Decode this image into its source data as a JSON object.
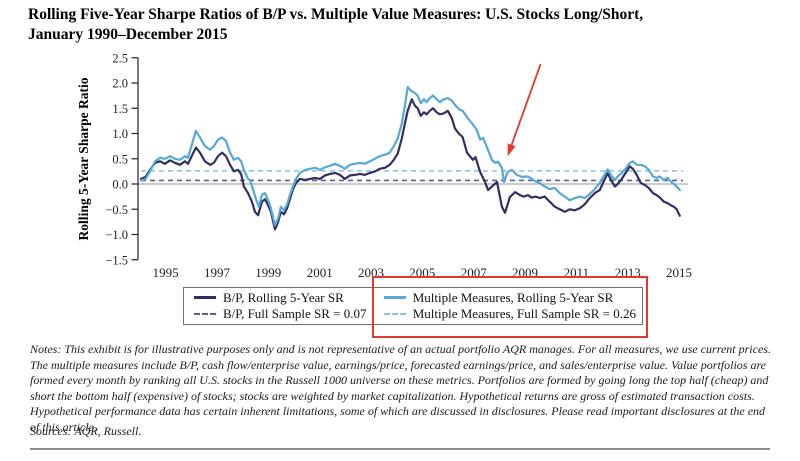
{
  "title": {
    "line1": "Rolling Five-Year Sharpe Ratios of B/P vs. Multiple Value Measures: U.S. Stocks Long/Short,",
    "line2": "January 1990–December 2015"
  },
  "chart_data": {
    "type": "line",
    "title": "Rolling Five-Year Sharpe Ratios of B/P vs. Multiple Value Measures: U.S. Stocks Long/Short, January 1990–December 2015",
    "xlabel": "",
    "ylabel": "Rolling 5-Year Sharpe Ratio",
    "ylim": [
      -1.5,
      2.5
    ],
    "ytick_step": 0.5,
    "xticks": [
      1995,
      1997,
      1999,
      2001,
      2003,
      2005,
      2007,
      2009,
      2011,
      2013,
      2015
    ],
    "x_range": [
      1994.92,
      2015.92
    ],
    "grid": "zero-line-only",
    "legend_position": "bottom",
    "series": [
      {
        "name": "B/P, Rolling 5-Year SR",
        "style": "solid",
        "color": "#342e60",
        "points": [
          [
            1994.92,
            0.1
          ],
          [
            1995.1,
            0.14
          ],
          [
            1995.27,
            0.28
          ],
          [
            1995.47,
            0.42
          ],
          [
            1995.66,
            0.45
          ],
          [
            1995.85,
            0.4
          ],
          [
            1996.05,
            0.47
          ],
          [
            1996.24,
            0.42
          ],
          [
            1996.44,
            0.38
          ],
          [
            1996.63,
            0.45
          ],
          [
            1996.75,
            0.4
          ],
          [
            1996.94,
            0.6
          ],
          [
            1997.06,
            0.72
          ],
          [
            1997.22,
            0.62
          ],
          [
            1997.41,
            0.45
          ],
          [
            1997.61,
            0.38
          ],
          [
            1997.76,
            0.42
          ],
          [
            1997.92,
            0.55
          ],
          [
            1998.08,
            0.62
          ],
          [
            1998.23,
            0.55
          ],
          [
            1998.39,
            0.38
          ],
          [
            1998.54,
            0.25
          ],
          [
            1998.7,
            0.28
          ],
          [
            1998.82,
            0.2
          ],
          [
            1998.93,
            -0.05
          ],
          [
            1999.09,
            -0.18
          ],
          [
            1999.24,
            -0.35
          ],
          [
            1999.36,
            -0.55
          ],
          [
            1999.48,
            -0.62
          ],
          [
            1999.63,
            -0.35
          ],
          [
            1999.75,
            -0.3
          ],
          [
            1999.87,
            -0.42
          ],
          [
            1999.98,
            -0.55
          ],
          [
            2000.14,
            -0.9
          ],
          [
            2000.26,
            -0.75
          ],
          [
            2000.37,
            -0.55
          ],
          [
            2000.49,
            -0.6
          ],
          [
            2000.61,
            -0.48
          ],
          [
            2000.72,
            -0.3
          ],
          [
            2000.84,
            -0.1
          ],
          [
            2000.96,
            0.02
          ],
          [
            2001.11,
            0.1
          ],
          [
            2001.31,
            0.08
          ],
          [
            2001.5,
            0.1
          ],
          [
            2001.7,
            0.12
          ],
          [
            2001.89,
            0.1
          ],
          [
            2002.09,
            0.17
          ],
          [
            2002.28,
            0.2
          ],
          [
            2002.48,
            0.22
          ],
          [
            2002.67,
            0.18
          ],
          [
            2002.86,
            0.1
          ],
          [
            2003.06,
            0.17
          ],
          [
            2003.25,
            0.18
          ],
          [
            2003.45,
            0.2
          ],
          [
            2003.64,
            0.18
          ],
          [
            2003.84,
            0.22
          ],
          [
            2004.03,
            0.25
          ],
          [
            2004.22,
            0.3
          ],
          [
            2004.42,
            0.32
          ],
          [
            2004.61,
            0.38
          ],
          [
            2004.77,
            0.48
          ],
          [
            2004.92,
            0.6
          ],
          [
            2005.08,
            0.9
          ],
          [
            2005.2,
            1.2
          ],
          [
            2005.31,
            1.45
          ],
          [
            2005.47,
            1.68
          ],
          [
            2005.59,
            1.55
          ],
          [
            2005.7,
            1.5
          ],
          [
            2005.82,
            1.35
          ],
          [
            2005.94,
            1.42
          ],
          [
            2006.05,
            1.38
          ],
          [
            2006.17,
            1.45
          ],
          [
            2006.29,
            1.5
          ],
          [
            2006.44,
            1.42
          ],
          [
            2006.56,
            1.38
          ],
          [
            2006.72,
            1.4
          ],
          [
            2006.87,
            1.45
          ],
          [
            2007.03,
            1.3
          ],
          [
            2007.15,
            1.1
          ],
          [
            2007.3,
            1.0
          ],
          [
            2007.45,
            0.93
          ],
          [
            2007.62,
            0.62
          ],
          [
            2007.85,
            0.48
          ],
          [
            2007.95,
            0.53
          ],
          [
            2008.13,
            0.24
          ],
          [
            2008.32,
            0.04
          ],
          [
            2008.44,
            -0.12
          ],
          [
            2008.59,
            -0.05
          ],
          [
            2008.79,
            0.04
          ],
          [
            2008.98,
            -0.45
          ],
          [
            2009.1,
            -0.57
          ],
          [
            2009.29,
            -0.26
          ],
          [
            2009.49,
            -0.16
          ],
          [
            2009.68,
            -0.22
          ],
          [
            2009.83,
            -0.25
          ],
          [
            2009.99,
            -0.22
          ],
          [
            2010.14,
            -0.27
          ],
          [
            2010.3,
            -0.25
          ],
          [
            2010.45,
            -0.28
          ],
          [
            2010.65,
            -0.25
          ],
          [
            2010.84,
            -0.35
          ],
          [
            2011.04,
            -0.45
          ],
          [
            2011.23,
            -0.5
          ],
          [
            2011.43,
            -0.55
          ],
          [
            2011.62,
            -0.5
          ],
          [
            2011.82,
            -0.52
          ],
          [
            2012.01,
            -0.48
          ],
          [
            2012.21,
            -0.4
          ],
          [
            2012.4,
            -0.28
          ],
          [
            2012.6,
            -0.18
          ],
          [
            2012.79,
            -0.12
          ],
          [
            2012.99,
            0.1
          ],
          [
            2013.1,
            0.21
          ],
          [
            2013.26,
            0.05
          ],
          [
            2013.38,
            -0.05
          ],
          [
            2013.49,
            0.0
          ],
          [
            2013.65,
            0.1
          ],
          [
            2013.8,
            0.22
          ],
          [
            2013.96,
            0.35
          ],
          [
            2014.08,
            0.3
          ],
          [
            2014.23,
            0.18
          ],
          [
            2014.39,
            0.02
          ],
          [
            2014.55,
            -0.02
          ],
          [
            2014.7,
            -0.08
          ],
          [
            2014.86,
            -0.18
          ],
          [
            2015.01,
            -0.22
          ],
          [
            2015.13,
            -0.27
          ],
          [
            2015.29,
            -0.35
          ],
          [
            2015.44,
            -0.38
          ],
          [
            2015.56,
            -0.42
          ],
          [
            2015.68,
            -0.45
          ],
          [
            2015.79,
            -0.5
          ],
          [
            2015.91,
            -0.63
          ]
        ]
      },
      {
        "name": "Multiple Measures, Rolling 5-Year SR",
        "style": "solid",
        "color": "#55a8d8",
        "points": [
          [
            1994.92,
            0.07
          ],
          [
            1995.1,
            0.1
          ],
          [
            1995.27,
            0.25
          ],
          [
            1995.47,
            0.45
          ],
          [
            1995.66,
            0.52
          ],
          [
            1995.85,
            0.5
          ],
          [
            1996.05,
            0.55
          ],
          [
            1996.24,
            0.5
          ],
          [
            1996.44,
            0.48
          ],
          [
            1996.63,
            0.55
          ],
          [
            1996.75,
            0.52
          ],
          [
            1996.94,
            0.85
          ],
          [
            1997.06,
            1.05
          ],
          [
            1997.22,
            0.92
          ],
          [
            1997.41,
            0.75
          ],
          [
            1997.61,
            0.68
          ],
          [
            1997.76,
            0.75
          ],
          [
            1997.92,
            0.88
          ],
          [
            1998.08,
            0.92
          ],
          [
            1998.23,
            0.85
          ],
          [
            1998.39,
            0.62
          ],
          [
            1998.54,
            0.48
          ],
          [
            1998.7,
            0.52
          ],
          [
            1998.82,
            0.45
          ],
          [
            1998.93,
            0.28
          ],
          [
            1999.09,
            0.1
          ],
          [
            1999.17,
            0.08
          ],
          [
            1999.28,
            -0.1
          ],
          [
            1999.4,
            -0.3
          ],
          [
            1999.51,
            -0.45
          ],
          [
            1999.63,
            -0.22
          ],
          [
            1999.75,
            -0.18
          ],
          [
            1999.87,
            -0.32
          ],
          [
            1999.98,
            -0.48
          ],
          [
            2000.14,
            -0.82
          ],
          [
            2000.26,
            -0.68
          ],
          [
            2000.37,
            -0.45
          ],
          [
            2000.49,
            -0.52
          ],
          [
            2000.61,
            -0.4
          ],
          [
            2000.72,
            -0.22
          ],
          [
            2000.84,
            -0.05
          ],
          [
            2000.96,
            0.1
          ],
          [
            2001.11,
            0.22
          ],
          [
            2001.31,
            0.28
          ],
          [
            2001.5,
            0.3
          ],
          [
            2001.7,
            0.32
          ],
          [
            2001.89,
            0.28
          ],
          [
            2002.09,
            0.33
          ],
          [
            2002.28,
            0.36
          ],
          [
            2002.48,
            0.4
          ],
          [
            2002.67,
            0.36
          ],
          [
            2002.86,
            0.3
          ],
          [
            2003.06,
            0.38
          ],
          [
            2003.25,
            0.4
          ],
          [
            2003.45,
            0.42
          ],
          [
            2003.64,
            0.4
          ],
          [
            2003.84,
            0.45
          ],
          [
            2004.03,
            0.5
          ],
          [
            2004.22,
            0.55
          ],
          [
            2004.42,
            0.58
          ],
          [
            2004.61,
            0.62
          ],
          [
            2004.77,
            0.75
          ],
          [
            2004.92,
            0.9
          ],
          [
            2005.08,
            1.2
          ],
          [
            2005.2,
            1.55
          ],
          [
            2005.31,
            1.92
          ],
          [
            2005.43,
            1.85
          ],
          [
            2005.59,
            1.8
          ],
          [
            2005.7,
            1.75
          ],
          [
            2005.82,
            1.6
          ],
          [
            2005.94,
            1.68
          ],
          [
            2006.05,
            1.62
          ],
          [
            2006.17,
            1.7
          ],
          [
            2006.29,
            1.75
          ],
          [
            2006.44,
            1.68
          ],
          [
            2006.56,
            1.62
          ],
          [
            2006.72,
            1.68
          ],
          [
            2006.87,
            1.7
          ],
          [
            2007.03,
            1.65
          ],
          [
            2007.18,
            1.55
          ],
          [
            2007.34,
            1.47
          ],
          [
            2007.45,
            1.45
          ],
          [
            2007.65,
            1.3
          ],
          [
            2007.85,
            1.18
          ],
          [
            2008.0,
            1.07
          ],
          [
            2008.13,
            0.88
          ],
          [
            2008.25,
            0.91
          ],
          [
            2008.44,
            0.67
          ],
          [
            2008.59,
            0.48
          ],
          [
            2008.71,
            0.42
          ],
          [
            2008.83,
            0.44
          ],
          [
            2008.98,
            0.32
          ],
          [
            2009.06,
            0.04
          ],
          [
            2009.21,
            0.24
          ],
          [
            2009.37,
            0.28
          ],
          [
            2009.56,
            0.18
          ],
          [
            2009.76,
            0.14
          ],
          [
            2009.99,
            0.15
          ],
          [
            2010.14,
            0.1
          ],
          [
            2010.3,
            0.05
          ],
          [
            2010.45,
            0.02
          ],
          [
            2010.65,
            -0.05
          ],
          [
            2010.84,
            -0.1
          ],
          [
            2011.04,
            -0.08
          ],
          [
            2011.23,
            -0.18
          ],
          [
            2011.43,
            -0.25
          ],
          [
            2011.62,
            -0.32
          ],
          [
            2011.82,
            -0.28
          ],
          [
            2012.01,
            -0.25
          ],
          [
            2012.21,
            -0.28
          ],
          [
            2012.4,
            -0.2
          ],
          [
            2012.6,
            -0.1
          ],
          [
            2012.79,
            0.02
          ],
          [
            2012.99,
            0.2
          ],
          [
            2013.1,
            0.29
          ],
          [
            2013.26,
            0.15
          ],
          [
            2013.38,
            0.08
          ],
          [
            2013.49,
            0.15
          ],
          [
            2013.65,
            0.22
          ],
          [
            2013.8,
            0.3
          ],
          [
            2013.96,
            0.42
          ],
          [
            2014.08,
            0.45
          ],
          [
            2014.23,
            0.38
          ],
          [
            2014.39,
            0.38
          ],
          [
            2014.55,
            0.35
          ],
          [
            2014.7,
            0.28
          ],
          [
            2014.86,
            0.15
          ],
          [
            2015.01,
            0.12
          ],
          [
            2015.13,
            0.15
          ],
          [
            2015.29,
            0.08
          ],
          [
            2015.44,
            0.12
          ],
          [
            2015.56,
            0.05
          ],
          [
            2015.68,
            0.0
          ],
          [
            2015.79,
            -0.05
          ],
          [
            2015.91,
            -0.12
          ]
        ]
      },
      {
        "name": "B/P, Full Sample SR = 0.07",
        "style": "dashed",
        "color": "#5a5a9c",
        "value": 0.07
      },
      {
        "name": "Multiple Measures, Full Sample SR = 0.26",
        "style": "dashed",
        "color": "#8cc1e5",
        "value": 0.26
      }
    ],
    "annotation": {
      "type": "arrow",
      "color": "#e2392e",
      "target_year": 2009.2,
      "target_value": 0.55,
      "points_to": "Multiple Measures rolling line after 2008"
    },
    "highlight_box": {
      "color": "#e2392e",
      "around": "Multiple Measures legend entries"
    }
  },
  "notes": "Notes: This exhibit is for illustrative purposes only and is not representative of an actual portfolio AQR manages. For all measures, we use current prices. The multiple measures include B/P, cash flow/enterprise value, earnings/price, forecasted earnings/price, and sales/enterprise value. Value portfolios are formed every month by ranking all U.S. stocks in the Russell 1000 universe on these metrics. Portfolios are formed by going long the top half (cheap) and short the bottom half (expensive) of stocks; stocks are weighted by market capitalization. Hypothetical returns are gross of estimated transaction costs. Hypothetical performance data has certain inherent limitations, some of which are discussed in disclosures. Please read important disclosures at the end of this article.",
  "sources": "Sources: AQR, Russell."
}
